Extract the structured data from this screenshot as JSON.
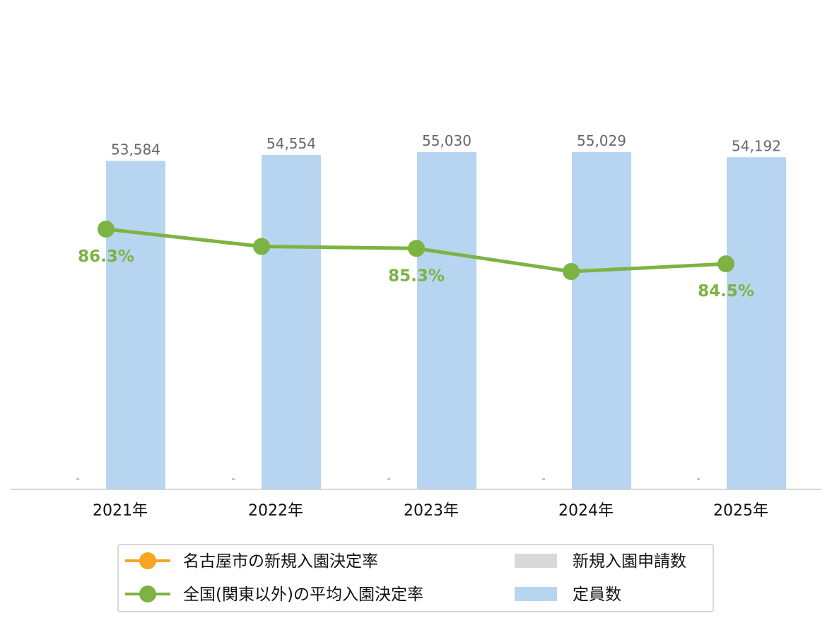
{
  "chart_data": {
    "type": "bar",
    "categories": [
      "2021年",
      "2022年",
      "2023年",
      "2024年",
      "2025年"
    ],
    "ylim": [
      0,
      65000
    ],
    "grid": false,
    "legend_position": "bottom",
    "series": [
      {
        "name": "新規入園申請数",
        "kind": "bar",
        "color": "#d9d9d9",
        "values": [
          null,
          null,
          null,
          null,
          null
        ],
        "labels": [
          "-",
          "-",
          "-",
          "-",
          "-"
        ]
      },
      {
        "name": "定員数",
        "kind": "bar",
        "color": "#b7d5f0",
        "values": [
          53584,
          54554,
          55030,
          55029,
          54192
        ],
        "labels": [
          "53,584",
          "54,554",
          "55,030",
          "55,029",
          "54,192"
        ]
      },
      {
        "name": "名古屋市の新規入園決定率",
        "kind": "line",
        "color": "#f5a623",
        "values": [
          null,
          null,
          null,
          null,
          null
        ]
      },
      {
        "name": "全国(関東以外)の平均入園決定率",
        "kind": "line",
        "color": "#7cb342",
        "values": [
          86.3,
          85.4,
          85.3,
          84.1,
          84.5
        ],
        "labels": [
          "86.3%",
          "",
          "85.3%",
          "",
          "84.5%"
        ]
      }
    ],
    "rate_axis_range": [
      0,
      100
    ]
  }
}
